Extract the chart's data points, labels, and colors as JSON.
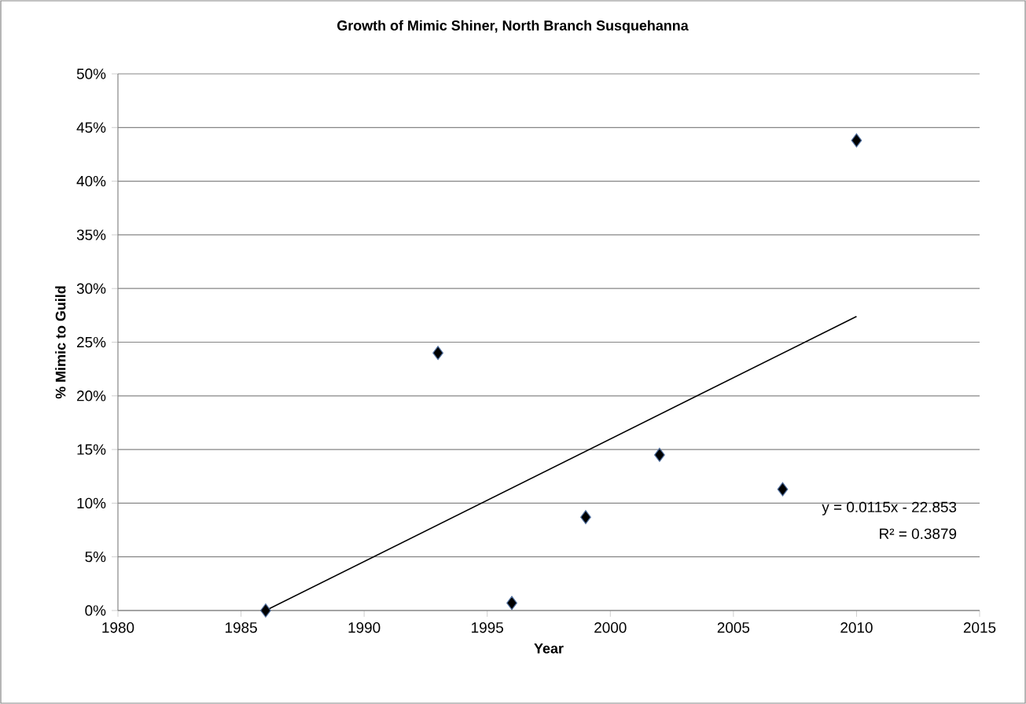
{
  "chart_data": {
    "type": "scatter",
    "title": "Growth of Mimic Shiner, North Branch Susquehanna",
    "xlabel": "Year",
    "ylabel": "% Mimic to Guild",
    "series": [
      {
        "color": "#000000",
        "marker": "diamond",
        "x": [
          1986,
          1993,
          1996,
          1999,
          2002,
          2007,
          2010
        ],
        "values": [
          0,
          24,
          0.7,
          8.7,
          14.5,
          11.3,
          43.8
        ]
      },
      {
        "type": "line",
        "color": "#000000",
        "marker": "none",
        "x": [
          1986,
          2010
        ],
        "values": [
          0,
          27.4
        ]
      }
    ],
    "xlim": [
      1980,
      2015
    ],
    "xticks": [
      1980,
      1985,
      1990,
      1995,
      2000,
      2005,
      2010,
      2015
    ],
    "ylim": [
      0,
      50
    ],
    "yticks": [
      {
        "value": 0,
        "label": "0%"
      },
      {
        "value": 5,
        "label": "5%"
      },
      {
        "value": 10,
        "label": "10%"
      },
      {
        "value": 15,
        "label": "15%"
      },
      {
        "value": 20,
        "label": "20%"
      },
      {
        "value": 25,
        "label": "25%"
      },
      {
        "value": 30,
        "label": "30%"
      },
      {
        "value": 35,
        "label": "35%"
      },
      {
        "value": 40,
        "label": "40%"
      },
      {
        "value": 45,
        "label": "45%"
      },
      {
        "value": 50,
        "label": "50%"
      }
    ],
    "grid": "y",
    "annotations": [
      "y = 0.0115x - 22.853",
      "R² = 0.3879"
    ]
  }
}
